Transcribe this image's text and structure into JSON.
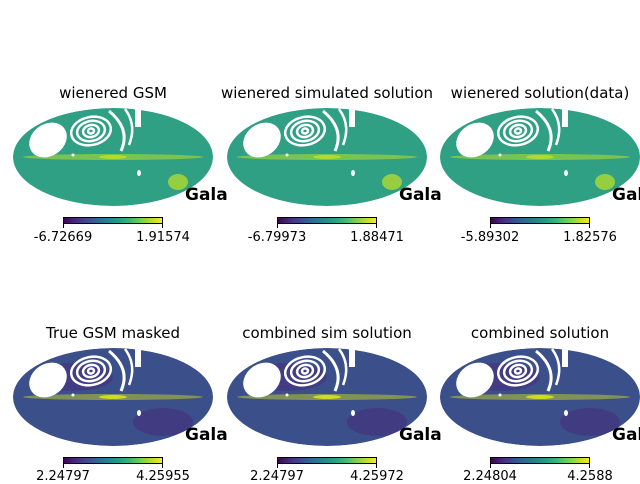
{
  "chart_data": [
    {
      "type": "heatmap",
      "title": "wienered GSM",
      "projection": "mollweide",
      "coord_label": "Galactic",
      "colormap": "viridis",
      "colorbar": {
        "min": "-6.72669",
        "max": "1.91574"
      }
    },
    {
      "type": "heatmap",
      "title": "wienered simulated solution",
      "projection": "mollweide",
      "coord_label": "Galactic",
      "colormap": "viridis",
      "colorbar": {
        "min": "-6.79973",
        "max": "1.88471"
      }
    },
    {
      "type": "heatmap",
      "title": "wienered solution(data)",
      "projection": "mollweide",
      "coord_label": "Galactic",
      "colormap": "viridis",
      "colorbar": {
        "min": "-5.89302",
        "max": "1.82576"
      }
    },
    {
      "type": "heatmap",
      "title": "True GSM masked",
      "projection": "mollweide",
      "coord_label": "Galactic",
      "colormap": "viridis",
      "colorbar": {
        "min": "2.24797",
        "max": "4.25955"
      }
    },
    {
      "type": "heatmap",
      "title": "combined sim solution",
      "projection": "mollweide",
      "coord_label": "Galactic",
      "colormap": "viridis",
      "colorbar": {
        "min": "2.24797",
        "max": "4.25972"
      }
    },
    {
      "type": "heatmap",
      "title": "combined solution",
      "projection": "mollweide",
      "coord_label": "Galactic",
      "colormap": "viridis",
      "colorbar": {
        "min": "2.24804",
        "max": "4.2588"
      }
    }
  ],
  "colors": {
    "row1_fill": "#2fa084",
    "row1_band": "#b8de29",
    "row2_fill": "#3b4f8a",
    "row2_band": "#d8e219",
    "mask": "#ffffff"
  }
}
